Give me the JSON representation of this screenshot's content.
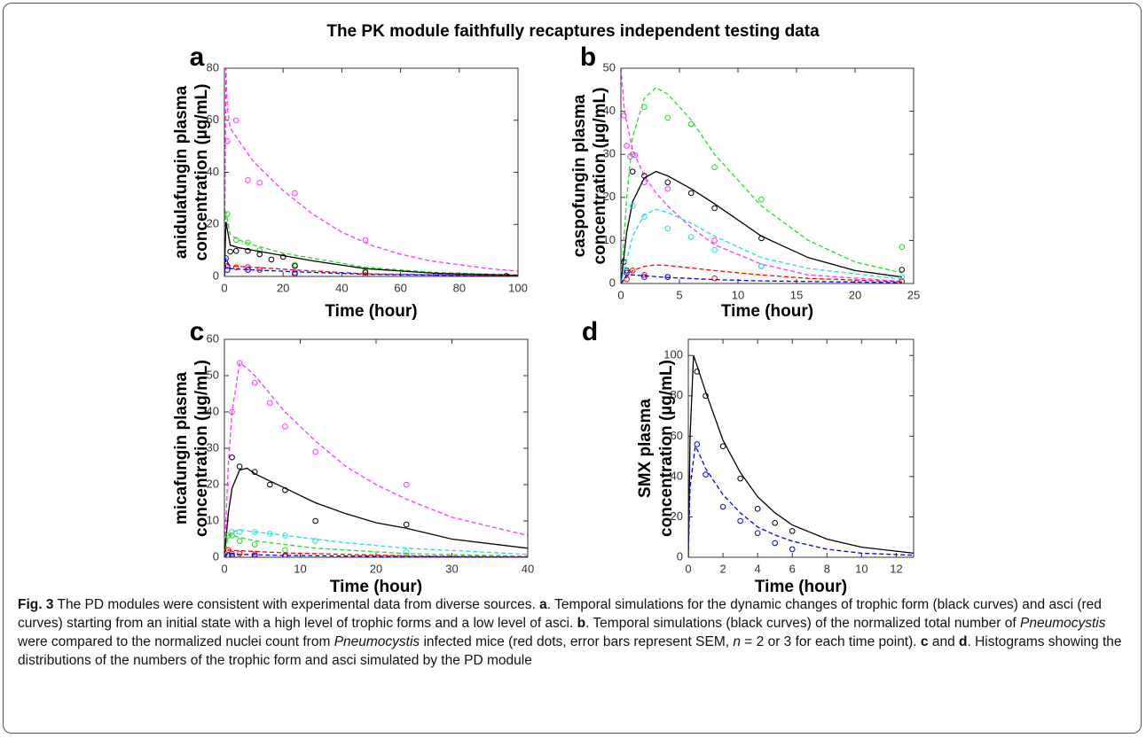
{
  "figure_title": "The PK module faithfully recaptures independent testing data",
  "chart_data": [
    {
      "type": "line",
      "panel": "a",
      "ylabel": [
        "anidulafungin plasma",
        "concentration (µg/mL)"
      ],
      "xlabel": "Time (hour)",
      "xlim": [
        0,
        100
      ],
      "ylim": [
        0,
        80
      ],
      "xticks": [
        0,
        20,
        40,
        60,
        80,
        100
      ],
      "yticks": [
        0,
        20,
        40,
        60,
        80
      ],
      "series": [
        {
          "kind": "line",
          "dash": true,
          "color": "#ff33ff",
          "x": [
            0,
            0.5,
            1,
            2,
            5,
            10,
            20,
            30,
            40,
            50,
            60,
            70,
            80,
            90,
            100
          ],
          "values": [
            0,
            80,
            65,
            57,
            52,
            44,
            33,
            24,
            17,
            12,
            8.5,
            6,
            4.5,
            3,
            2
          ]
        },
        {
          "kind": "scatter",
          "color": "#ff33ff",
          "x": [
            1,
            4,
            8,
            12,
            24,
            48
          ],
          "values": [
            52,
            60,
            37,
            36,
            32,
            14
          ]
        },
        {
          "kind": "line",
          "dash": true,
          "color": "#22dd22",
          "x": [
            0,
            0.5,
            2,
            5,
            10,
            20,
            30,
            48,
            72,
            100
          ],
          "values": [
            0,
            25,
            16,
            14,
            12,
            9,
            7,
            3.5,
            1.5,
            0.6
          ]
        },
        {
          "kind": "scatter",
          "color": "#22dd22",
          "x": [
            1,
            4,
            8,
            12,
            24,
            48
          ],
          "values": [
            24,
            14,
            13,
            10,
            4.5,
            2
          ]
        },
        {
          "kind": "line",
          "dash": false,
          "color": "#000000",
          "x": [
            0,
            0.5,
            2,
            5,
            10,
            20,
            30,
            48,
            72,
            100
          ],
          "values": [
            0,
            21,
            12,
            11,
            10,
            8,
            6,
            3,
            1.2,
            0.4
          ]
        },
        {
          "kind": "scatter",
          "color": "#000000",
          "x": [
            2,
            4,
            8,
            12,
            16,
            20,
            24,
            48,
            72,
            96
          ],
          "values": [
            9.5,
            9.8,
            9.8,
            8.5,
            6.5,
            7.5,
            4,
            1.5,
            0.5,
            0.2
          ]
        },
        {
          "kind": "line",
          "dash": true,
          "color": "#ff0000",
          "x": [
            0,
            0.5,
            2,
            10,
            24,
            48,
            100
          ],
          "values": [
            0,
            5,
            4,
            3.5,
            2.5,
            1,
            0.2
          ]
        },
        {
          "kind": "scatter",
          "color": "#ff0000",
          "x": [
            1,
            4,
            8,
            12,
            24,
            48
          ],
          "values": [
            4,
            3.5,
            3.5,
            2.5,
            1.5,
            0.5
          ]
        },
        {
          "kind": "line",
          "dash": true,
          "color": "#0000ff",
          "x": [
            0,
            0.5,
            2,
            10,
            24,
            48,
            100
          ],
          "values": [
            0,
            7,
            3,
            2.5,
            1.8,
            0.8,
            0.1
          ]
        },
        {
          "kind": "scatter",
          "color": "#0000ff",
          "x": [
            0.5,
            1,
            8,
            24
          ],
          "values": [
            7,
            2.5,
            2.5,
            1
          ]
        }
      ]
    },
    {
      "type": "line",
      "panel": "b",
      "ylabel": [
        "caspofungin plasma",
        "concentration (µg/mL)"
      ],
      "xlabel": "Time (hour)",
      "xlim": [
        0,
        25
      ],
      "ylim": [
        0,
        50
      ],
      "xticks": [
        0,
        5,
        10,
        15,
        20,
        25
      ],
      "yticks": [
        0,
        10,
        20,
        30,
        40,
        50
      ],
      "series": [
        {
          "kind": "line",
          "dash": true,
          "color": "#22dd22",
          "x": [
            0,
            0.5,
            1,
            2,
            3,
            4,
            6,
            8,
            12,
            16,
            20,
            24
          ],
          "values": [
            0,
            20,
            34,
            43,
            45.5,
            44,
            38,
            30,
            18,
            10,
            5,
            2.5
          ]
        },
        {
          "kind": "scatter",
          "color": "#22dd22",
          "x": [
            1,
            2,
            4,
            6,
            8,
            12,
            24
          ],
          "values": [
            30,
            41,
            38.5,
            37,
            27,
            19.5,
            8.5
          ]
        },
        {
          "kind": "line",
          "dash": true,
          "color": "#ff33ff",
          "x": [
            0,
            0.3,
            1,
            2,
            3,
            4,
            6,
            8,
            12,
            16,
            24
          ],
          "values": [
            50,
            40,
            31,
            25,
            21,
            18,
            13,
            9,
            4.5,
            2,
            0.5
          ]
        },
        {
          "kind": "scatter",
          "color": "#ff33ff",
          "x": [
            0.25,
            0.5,
            0.8,
            1.2,
            2,
            4,
            8,
            12,
            24
          ],
          "values": [
            39,
            32,
            29.5,
            29.8,
            23.5,
            22,
            10,
            4,
            0.5
          ]
        },
        {
          "kind": "line",
          "dash": false,
          "color": "#000000",
          "x": [
            0,
            0.5,
            1,
            2,
            3,
            4,
            6,
            8,
            12,
            16,
            20,
            24
          ],
          "values": [
            0,
            12,
            19,
            24.5,
            26,
            25,
            22,
            18.5,
            11,
            6,
            3,
            1.5
          ]
        },
        {
          "kind": "scatter",
          "color": "#000000",
          "x": [
            0.25,
            0.5,
            1,
            2,
            4,
            6,
            8,
            12,
            24
          ],
          "values": [
            5,
            3,
            26,
            25,
            23.5,
            21,
            17.5,
            10.5,
            3.2
          ]
        },
        {
          "kind": "line",
          "dash": true,
          "color": "#22dddd",
          "x": [
            0,
            1,
            2,
            3,
            4,
            6,
            8,
            12,
            16,
            24
          ],
          "values": [
            0,
            11,
            16,
            17.2,
            16.5,
            14,
            11,
            6,
            3.5,
            1
          ]
        },
        {
          "kind": "scatter",
          "color": "#22dddd",
          "x": [
            1,
            2,
            4,
            6,
            8,
            12,
            24
          ],
          "values": [
            18,
            15.5,
            12.8,
            10.8,
            7.8,
            4,
            1.5
          ]
        },
        {
          "kind": "line",
          "dash": true,
          "color": "#ff0000",
          "x": [
            0,
            1,
            2,
            3,
            4,
            6,
            8,
            12,
            16,
            24
          ],
          "values": [
            0,
            3,
            4,
            4.3,
            4.2,
            3.6,
            3,
            2,
            1.2,
            0.4
          ]
        },
        {
          "kind": "scatter",
          "color": "#ff0000",
          "x": [
            0.5,
            1,
            2,
            4,
            8,
            24
          ],
          "values": [
            1,
            3,
            2,
            1.5,
            1.2,
            0.5
          ]
        },
        {
          "kind": "line",
          "dash": true,
          "color": "#0000ff",
          "x": [
            0,
            0.5,
            1,
            2,
            4,
            8,
            12,
            24
          ],
          "values": [
            0,
            2,
            2,
            1.8,
            1.4,
            0.9,
            0.6,
            0.2
          ]
        },
        {
          "kind": "scatter",
          "color": "#0000ff",
          "x": [
            0.5,
            2,
            4
          ],
          "values": [
            2.5,
            1.5,
            1.5
          ]
        }
      ]
    },
    {
      "type": "line",
      "panel": "c",
      "ylabel": [
        "micafungin plasma",
        "concentration (µg/mL)"
      ],
      "xlabel": "Time (hour)",
      "xlim": [
        0,
        40
      ],
      "ylim": [
        0,
        60
      ],
      "xticks": [
        0,
        10,
        20,
        30,
        40
      ],
      "yticks": [
        0,
        10,
        20,
        30,
        40,
        50,
        60
      ],
      "series": [
        {
          "kind": "line",
          "dash": true,
          "color": "#ff33ff",
          "x": [
            0,
            0.5,
            1,
            2,
            3,
            4,
            6,
            8,
            12,
            16,
            20,
            24,
            30,
            40
          ],
          "values": [
            0,
            25,
            40,
            53.5,
            52,
            50,
            45,
            40,
            32,
            25,
            20,
            16,
            11,
            6
          ]
        },
        {
          "kind": "scatter",
          "color": "#ff33ff",
          "x": [
            1,
            2,
            4,
            6,
            8,
            12,
            24
          ],
          "values": [
            40,
            53.5,
            48,
            42.5,
            36,
            29,
            20
          ]
        },
        {
          "kind": "line",
          "dash": false,
          "color": "#000000",
          "x": [
            0,
            0.5,
            1,
            2,
            3,
            4,
            6,
            8,
            12,
            16,
            20,
            24,
            30,
            40
          ],
          "values": [
            0,
            12,
            19,
            24,
            24.5,
            23,
            21,
            19,
            15,
            12,
            9.5,
            8,
            5,
            2.5
          ]
        },
        {
          "kind": "scatter",
          "color": "#000000",
          "x": [
            1,
            2,
            4,
            6,
            8,
            12,
            24
          ],
          "values": [
            27.5,
            25,
            23.5,
            20,
            18.5,
            10,
            9
          ]
        },
        {
          "kind": "line",
          "dash": true,
          "color": "#22dddd",
          "x": [
            0,
            0.5,
            1,
            2,
            4,
            8,
            12,
            16,
            24,
            40
          ],
          "values": [
            0,
            6,
            7,
            7.5,
            7,
            6,
            5,
            4,
            2.5,
            0.8
          ]
        },
        {
          "kind": "scatter",
          "color": "#22dddd",
          "x": [
            1,
            2,
            4,
            6,
            8,
            12,
            24
          ],
          "values": [
            7,
            7,
            7,
            6.5,
            6,
            4.5,
            1.5
          ]
        },
        {
          "kind": "line",
          "dash": true,
          "color": "#22dd22",
          "x": [
            0,
            0.5,
            1,
            2,
            4,
            8,
            12,
            24,
            40
          ],
          "values": [
            0,
            6,
            6,
            5.5,
            4.5,
            3.5,
            2.5,
            1,
            0.3
          ]
        },
        {
          "kind": "scatter",
          "color": "#22dd22",
          "x": [
            0.5,
            1,
            2,
            4,
            8,
            24
          ],
          "values": [
            6,
            6,
            4.5,
            3.5,
            2,
            0.5
          ]
        },
        {
          "kind": "line",
          "dash": true,
          "color": "#ff0000",
          "x": [
            0,
            0.5,
            2,
            8,
            24,
            40
          ],
          "values": [
            0,
            2,
            1.8,
            1.2,
            0.4,
            0.1
          ]
        },
        {
          "kind": "scatter",
          "color": "#ff0000",
          "x": [
            0.5,
            1,
            2,
            4,
            8
          ],
          "values": [
            2,
            1,
            1,
            0.8,
            0.5
          ]
        },
        {
          "kind": "line",
          "dash": true,
          "color": "#0000ff",
          "x": [
            0,
            0.5,
            2,
            8,
            24,
            40
          ],
          "values": [
            0,
            1,
            0.8,
            0.5,
            0.2,
            0.05
          ]
        },
        {
          "kind": "scatter",
          "color": "#0000ff",
          "x": [
            0.5,
            1,
            4,
            8
          ],
          "values": [
            0.5,
            0.5,
            0.4,
            0.3
          ]
        }
      ]
    },
    {
      "type": "line",
      "panel": "d",
      "ylabel": [
        "SMX plasma",
        "concentration (µg/mL)"
      ],
      "xlabel": "Time (hour)",
      "xlim": [
        0,
        13
      ],
      "ylim": [
        0,
        108
      ],
      "xticks": [
        0,
        2,
        4,
        6,
        8,
        10,
        12
      ],
      "yticks": [
        0,
        20,
        40,
        60,
        80,
        100
      ],
      "series": [
        {
          "kind": "line",
          "dash": false,
          "color": "#000000",
          "x": [
            0,
            0.1,
            0.3,
            0.5,
            1,
            2,
            3,
            4,
            5,
            6,
            8,
            10,
            13
          ],
          "values": [
            0,
            60,
            100,
            95,
            82,
            58,
            42,
            30,
            22,
            16,
            9,
            5,
            2
          ]
        },
        {
          "kind": "scatter",
          "color": "#000000",
          "x": [
            0.5,
            1,
            2,
            3,
            4,
            5,
            6
          ],
          "values": [
            92,
            80,
            55,
            39,
            24,
            17,
            13
          ]
        },
        {
          "kind": "line",
          "dash": true,
          "color": "#0000ff",
          "x": [
            0,
            0.1,
            0.4,
            0.6,
            1,
            2,
            3,
            4,
            5,
            6,
            8,
            10,
            13
          ],
          "values": [
            0,
            35,
            55,
            52,
            44,
            31,
            22,
            15,
            11,
            8,
            4,
            2,
            1
          ]
        },
        {
          "kind": "scatter",
          "color": "#0000ff",
          "x": [
            0.5,
            1,
            2,
            3,
            4,
            5,
            6
          ],
          "values": [
            56,
            41,
            25,
            18,
            12,
            7,
            4
          ]
        }
      ]
    }
  ],
  "caption": [
    {
      "text": "Fig. 3",
      "style": "bold"
    },
    {
      "text": " The PD modules were consistent with experimental data from diverse sources. ",
      "style": "normal"
    },
    {
      "text": "a",
      "style": "bold"
    },
    {
      "text": ". Temporal simulations for the dynamic changes of trophic form (black curves) and asci (red curves) starting from an initial state with a high level of trophic forms and a low level of asci. ",
      "style": "normal"
    },
    {
      "text": "b",
      "style": "bold"
    },
    {
      "text": ". Temporal simulations (black curves) of the normalized total number of ",
      "style": "normal"
    },
    {
      "text": "Pneumocystis",
      "style": "italic"
    },
    {
      "text": " were compared to the normalized nuclei count from ",
      "style": "normal"
    },
    {
      "text": "Pneumocystis",
      "style": "italic"
    },
    {
      "text": " infected mice (red dots, error bars represent SEM, ",
      "style": "normal"
    },
    {
      "text": "n",
      "style": "italic"
    },
    {
      "text": " = 2 or 3 for each time point). ",
      "style": "normal"
    },
    {
      "text": "c",
      "style": "bold"
    },
    {
      "text": " and ",
      "style": "normal"
    },
    {
      "text": "d",
      "style": "bold"
    },
    {
      "text": ". Histograms showing the distributions of the numbers of the trophic form and asci simulated by the PD module",
      "style": "normal"
    }
  ]
}
